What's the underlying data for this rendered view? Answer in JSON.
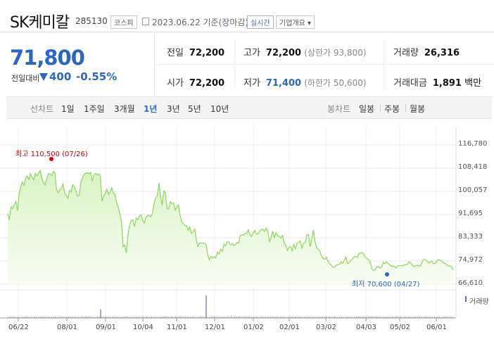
{
  "header": {
    "name": "SK케미칼",
    "code": "285130",
    "market": "코스피",
    "date": "2023.06.22 기준(장마감)",
    "realtime": "실시간",
    "company_info": "기업개요 ▾"
  },
  "quote": {
    "price": "71,800",
    "prev_label": "전일대비",
    "change": "400",
    "change_pct": "-0.55%"
  },
  "stats": {
    "prev_close_label": "전일",
    "prev_close": "72,200",
    "high_label": "고가",
    "high": "72,200",
    "upper_limit": "(상한가 93,800)",
    "volume_label": "거래량",
    "volume": "26,316",
    "open_label": "시가",
    "open": "72,200",
    "low_label": "저가",
    "low": "71,400",
    "lower_limit": "(하한가 50,600)",
    "amount_label": "거래대금",
    "amount": "1,891",
    "amount_unit": "백만"
  },
  "periods": {
    "line_label": "선차트",
    "line_items": [
      "1일",
      "1주일",
      "3개월",
      "1년",
      "3년",
      "5년",
      "10년"
    ],
    "selected": "1년",
    "candle_label": "봉차트",
    "candle_items": [
      "일봉",
      "주봉",
      "월봉"
    ]
  },
  "colors": {
    "accent_blue": "#2b66c2",
    "line_green": "#8ed55c",
    "max_red": "#e00000"
  },
  "chart_data": {
    "type": "area",
    "yticks": [
      "116,780",
      "108,418",
      "100,057",
      "91,695",
      "83,333",
      "74,972",
      "66,610"
    ],
    "ylim": [
      66610,
      116780
    ],
    "xticks": [
      "06/22",
      "08/01",
      "09/01",
      "10/04",
      "11/01",
      "12/01",
      "01/02",
      "02/01",
      "03/02",
      "04/03",
      "05/02",
      "06/01"
    ],
    "max_label": "최고 110,500 (07/26)",
    "min_label": "최저 70,600 (04/27)",
    "volume_label": "거래량",
    "series_values": [
      92000,
      89800,
      94500,
      93800,
      95200,
      96400,
      93100,
      99200,
      101800,
      103400,
      102200,
      104800,
      105600,
      104300,
      106400,
      105100,
      104200,
      106500,
      105600,
      106800,
      107500,
      104800,
      103200,
      102400,
      104600,
      106500,
      106300,
      105800,
      107200,
      106900,
      100900,
      99600,
      100600,
      101200,
      102800,
      99400,
      98700,
      97500,
      100400,
      99800,
      102400,
      101600,
      100200,
      98400,
      98700,
      103700,
      104900,
      106200,
      106600,
      106800,
      106400,
      106900,
      103700,
      105900,
      106500,
      106000,
      106300,
      105600,
      96500,
      98300,
      99300,
      100800,
      98900,
      99800,
      101400,
      99400,
      99000,
      96000,
      94200,
      91800,
      89200,
      80100,
      80800,
      77900,
      84600,
      88000,
      89600,
      89800,
      87300,
      90400,
      89900,
      91100,
      91600,
      89600,
      88600,
      90700,
      91300,
      91400,
      90900,
      92200,
      95500,
      97800,
      98300,
      103100,
      98200,
      95100,
      100200,
      99600,
      93800,
      93800,
      96400,
      95600,
      95900,
      93300,
      94400,
      95200,
      91500,
      89000,
      88500,
      87800,
      87700,
      86000,
      87200,
      84900,
      85500,
      86400,
      82600,
      80300,
      81400,
      81400,
      81500,
      81300,
      81000,
      77200,
      75400,
      76600,
      76200,
      76600,
      76100,
      78200,
      77500,
      79300,
      78400,
      81000,
      80400,
      81900,
      81800,
      80800,
      81200,
      80600,
      80800,
      81600,
      81400,
      84200,
      84400,
      84400,
      84900,
      84900,
      86200,
      84400,
      83800,
      85100,
      86000,
      84600,
      84700,
      85800,
      86200,
      86300,
      85700,
      86800,
      85700,
      81900,
      83500,
      85700,
      83300,
      85200,
      84000,
      83800,
      83200,
      84200,
      81600,
      80600,
      78800,
      79900,
      80200,
      78600,
      80900,
      79300,
      81400,
      81700,
      82200,
      79500,
      81400,
      81600,
      84400,
      84500,
      80100,
      82800,
      86100,
      82300,
      79800,
      79300,
      78600,
      76600,
      76000,
      75500,
      76400,
      74800,
      74000,
      73500,
      72700,
      72800,
      73500,
      73700,
      73700,
      74700,
      74100,
      75100,
      76400,
      74000,
      74400,
      75200,
      75700,
      76500,
      76600,
      76300,
      77600,
      77800,
      78000,
      77400,
      76300,
      75800,
      75400,
      74600,
      72200,
      71500,
      71800,
      72900,
      73000,
      72400,
      72900,
      74500,
      74000,
      74700,
      74100,
      73600,
      73100,
      73100,
      72900,
      72500,
      73300,
      73200,
      73400,
      73200,
      73600,
      73600,
      73900,
      74700,
      74100,
      73400,
      73000,
      73200,
      73500,
      73100,
      73300,
      74800,
      75700,
      75400,
      74800,
      74200,
      74700,
      74800,
      74000,
      74100,
      74900,
      75500,
      75200,
      75000,
      74200,
      74200,
      73600,
      73200,
      73200,
      72900,
      71800
    ],
    "volume_values": [
      0.28,
      0.32,
      0.35,
      0.41,
      0.33,
      0.29,
      0.35,
      0.3,
      0.3,
      0.35,
      0.36,
      0.31,
      0.34,
      0.35,
      0.26,
      0.28,
      0.38,
      0.32,
      0.29,
      0.34,
      0.32,
      0.32,
      0.34,
      0.32,
      0.32,
      0.26,
      0.3,
      0.35,
      0.43,
      0.29,
      0.26,
      0.43,
      0.36,
      0.3,
      0.34,
      0.3,
      0.31,
      0.36,
      0.35,
      0.27,
      0.34,
      0.35,
      0.33,
      0.28,
      0.47,
      0.3,
      0.41,
      0.42,
      0.39,
      0.32,
      0.33,
      0.26,
      0.34,
      0.35,
      0.35,
      0.32,
      0.39,
      0.31,
      0.37,
      0.35,
      0.32,
      0.26,
      0.4,
      0.34,
      0.3,
      0.35,
      0.27,
      0.3,
      0.3,
      0.39,
      0.4,
      0.28,
      0.31,
      0.31,
      0.28,
      0.3,
      0.35,
      0.35,
      0.34,
      0.35,
      0.36,
      0.26,
      0.41,
      0.35,
      0.29,
      0.35,
      0.32,
      0.35,
      0.33,
      0.33,
      0.35,
      0.4,
      0.37,
      0.38,
      0.39,
      0.31,
      0.32,
      0.38,
      0.33,
      0.41,
      0.36,
      0.35,
      0.41,
      0.38,
      0.31,
      0.39,
      0.36,
      0.3,
      0.33,
      0.41,
      0.3,
      0.33,
      0.26,
      0.33,
      0.4,
      0.37,
      0.29,
      0.31,
      0.29,
      0.26,
      0.37,
      0.4,
      0.39,
      0.34,
      0.33,
      0.35,
      0.3,
      0.37,
      0.3,
      0.33,
      0.45,
      0.28,
      0.57,
      0.33,
      0.37,
      0.39,
      0.41,
      0.4,
      0.31,
      0.32,
      0.4,
      0.39,
      0.31,
      0.35,
      0.33,
      0.36,
      0.32,
      0.36,
      0.28,
      0.32,
      0.38,
      0.32,
      0.39,
      0.3,
      0.41,
      0.28,
      0.33,
      0.38,
      0.27,
      0.41,
      0.32,
      0.31,
      0.33,
      0.4,
      0.29,
      0.35,
      0.36,
      0.41,
      0.34,
      0.33,
      0.4,
      0.3,
      0.42,
      0.36,
      0.28,
      0.34,
      0.28,
      0.38,
      0.33,
      0.3,
      0.3,
      0.3,
      0.3,
      0.35,
      0.39,
      0.35,
      0.38,
      0.34,
      0.47,
      0.3,
      0.41,
      0.28,
      0.33,
      0.43,
      0.3,
      0.29,
      0.3,
      0.37,
      0.25,
      0.33,
      0.32,
      0.36,
      0.3,
      0.31,
      0.3,
      0.29,
      0.36,
      0.41,
      0.36,
      0.37,
      0.31,
      0.33,
      0.33,
      0.38,
      0.38,
      0.41,
      0.4,
      0.31,
      0.36,
      0.36,
      0.33,
      0.33,
      0.32,
      0.32,
      0.38,
      0.25,
      0.32,
      0.33,
      0.32,
      0.36,
      0.37,
      0.35,
      0.36,
      0.27,
      0.32,
      0.31,
      0.32,
      0.39,
      0.28,
      0.32,
      0.35,
      0.32,
      0.37,
      0.4,
      0.31,
      0.27,
      0.34,
      0.36,
      0.3,
      0.38,
      0.31,
      0.35,
      0.33,
      0.34,
      0.41,
      0.37,
      0.29,
      0.31,
      0.35,
      0.38,
      0.3,
      0.38,
      0.32,
      0.34
    ],
    "volume_spikes": [
      {
        "at": "09/01",
        "value": 1.55
      },
      {
        "at": "12/01",
        "value": 4.0
      }
    ]
  }
}
